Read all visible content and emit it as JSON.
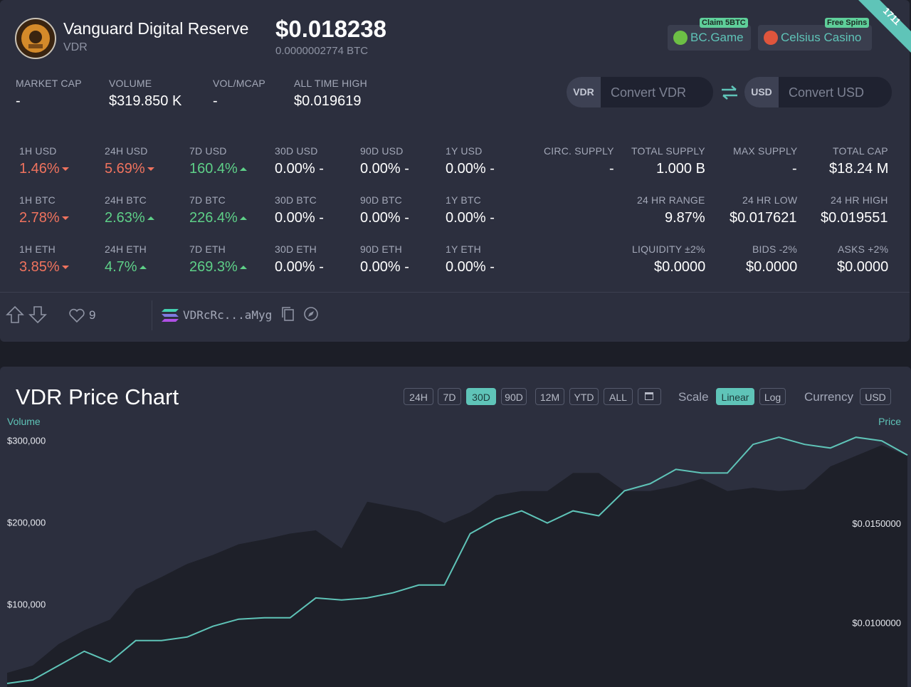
{
  "header": {
    "name": "Vanguard Digital Reserve",
    "symbol": "VDR",
    "price": "$0.018238",
    "price_btc": "0.0000002774 BTC",
    "rank": "1711",
    "promos": [
      {
        "badge": "Claim 5BTC",
        "label": "BC.Game"
      },
      {
        "badge": "Free Spins",
        "label": "Celsius Casino"
      }
    ]
  },
  "stats": [
    {
      "label": "MARKET CAP",
      "value": "-"
    },
    {
      "label": "VOLUME",
      "value": "$319.850 K"
    },
    {
      "label": "VOL/MCAP",
      "value": "-"
    },
    {
      "label": "ALL TIME HIGH",
      "value": "$0.019619"
    }
  ],
  "converter": {
    "from_code": "VDR",
    "from_placeholder": "Convert VDR",
    "to_code": "USD",
    "to_placeholder": "Convert USD"
  },
  "changes": [
    [
      {
        "label": "1H USD",
        "value": "1.46%",
        "dir": "down"
      },
      {
        "label": "24H USD",
        "value": "5.69%",
        "dir": "down"
      },
      {
        "label": "7D USD",
        "value": "160.4%",
        "dir": "up"
      },
      {
        "label": "30D USD",
        "value": "0.00% -",
        "dir": "flat"
      },
      {
        "label": "90D USD",
        "value": "0.00% -",
        "dir": "flat"
      },
      {
        "label": "1Y USD",
        "value": "0.00% -",
        "dir": "flat"
      }
    ],
    [
      {
        "label": "1H BTC",
        "value": "2.78%",
        "dir": "down"
      },
      {
        "label": "24H BTC",
        "value": "2.63%",
        "dir": "up"
      },
      {
        "label": "7D BTC",
        "value": "226.4%",
        "dir": "up"
      },
      {
        "label": "30D BTC",
        "value": "0.00% -",
        "dir": "flat"
      },
      {
        "label": "90D BTC",
        "value": "0.00% -",
        "dir": "flat"
      },
      {
        "label": "1Y BTC",
        "value": "0.00% -",
        "dir": "flat"
      }
    ],
    [
      {
        "label": "1H ETH",
        "value": "3.85%",
        "dir": "down"
      },
      {
        "label": "24H ETH",
        "value": "4.7%",
        "dir": "up"
      },
      {
        "label": "7D ETH",
        "value": "269.3%",
        "dir": "up"
      },
      {
        "label": "30D ETH",
        "value": "0.00% -",
        "dir": "flat"
      },
      {
        "label": "90D ETH",
        "value": "0.00% -",
        "dir": "flat"
      },
      {
        "label": "1Y ETH",
        "value": "0.00% -",
        "dir": "flat"
      }
    ]
  ],
  "supply": [
    [
      {
        "label": "CIRC. SUPPLY",
        "value": "-"
      },
      {
        "label": "TOTAL SUPPLY",
        "value": "1.000 B"
      },
      {
        "label": "MAX SUPPLY",
        "value": "-"
      },
      {
        "label": "TOTAL CAP",
        "value": "$18.24 M"
      }
    ],
    [
      {
        "label": "24 HR RANGE",
        "value": "9.87%"
      },
      {
        "label": "24 HR LOW",
        "value": "$0.017621"
      },
      {
        "label": "24 HR HIGH",
        "value": "$0.019551"
      }
    ],
    [
      {
        "label": "LIQUIDITY ±2%",
        "value": "$0.0000"
      },
      {
        "label": "BIDS -2%",
        "value": "$0.0000"
      },
      {
        "label": "ASKS +2%",
        "value": "$0.0000"
      }
    ]
  ],
  "social": {
    "likes": "9",
    "address": "VDRcRc...aMyg"
  },
  "chart_controls": {
    "ranges": [
      {
        "label": "24H"
      },
      {
        "label": "7D"
      },
      {
        "label": "30D",
        "active": true
      },
      {
        "label": "90D"
      },
      {
        "label": "12M"
      },
      {
        "label": "YTD"
      },
      {
        "label": "ALL"
      }
    ],
    "scale_label": "Scale",
    "scales": [
      {
        "label": "Linear",
        "active": true
      },
      {
        "label": "Log"
      }
    ],
    "currency_label": "Currency",
    "currency": "USD"
  },
  "chart_data": {
    "type": "line",
    "title": "VDR Price Chart",
    "ylabel": "Volume",
    "y2label": "Price",
    "ylim": [
      8700,
      326000
    ],
    "yticks": [
      {
        "value": 100000,
        "label": "$100,000"
      },
      {
        "value": 200000,
        "label": "$200,000"
      },
      {
        "value": 300000,
        "label": "$300,000"
      }
    ],
    "y2lim": [
      0.0068,
      0.0199
    ],
    "y2ticks": [
      {
        "value": 0.01,
        "label": "$0.0100000"
      },
      {
        "value": 0.015,
        "label": "$0.0150000"
      }
    ],
    "series": [
      {
        "kind": "area",
        "color": "#1e2029",
        "values": [
          26000,
          35000,
          61000,
          78000,
          91000,
          128000,
          143000,
          159000,
          170000,
          183000,
          189000,
          196000,
          200000,
          178000,
          235000,
          229000,
          223000,
          209000,
          222000,
          243000,
          248000,
          248000,
          270000,
          270000,
          248000,
          248000,
          254000,
          263000,
          248000,
          252000,
          248000,
          250000,
          278000,
          291000,
          304000,
          291000
        ]
      },
      {
        "kind": "line",
        "color": "#5fc4b8",
        "axis": "y2",
        "values": [
          0.00698,
          0.00716,
          0.00788,
          0.0086,
          0.00806,
          0.00914,
          0.00914,
          0.00932,
          0.00986,
          0.01022,
          0.01029,
          0.01029,
          0.01129,
          0.01119,
          0.01129,
          0.01155,
          0.01194,
          0.01194,
          0.01453,
          0.01525,
          0.01568,
          0.01507,
          0.01568,
          0.01543,
          0.01669,
          0.01705,
          0.01777,
          0.01759,
          0.01759,
          0.01903,
          0.01939,
          0.01903,
          0.01885,
          0.01939,
          0.01921,
          0.01849
        ]
      }
    ]
  }
}
